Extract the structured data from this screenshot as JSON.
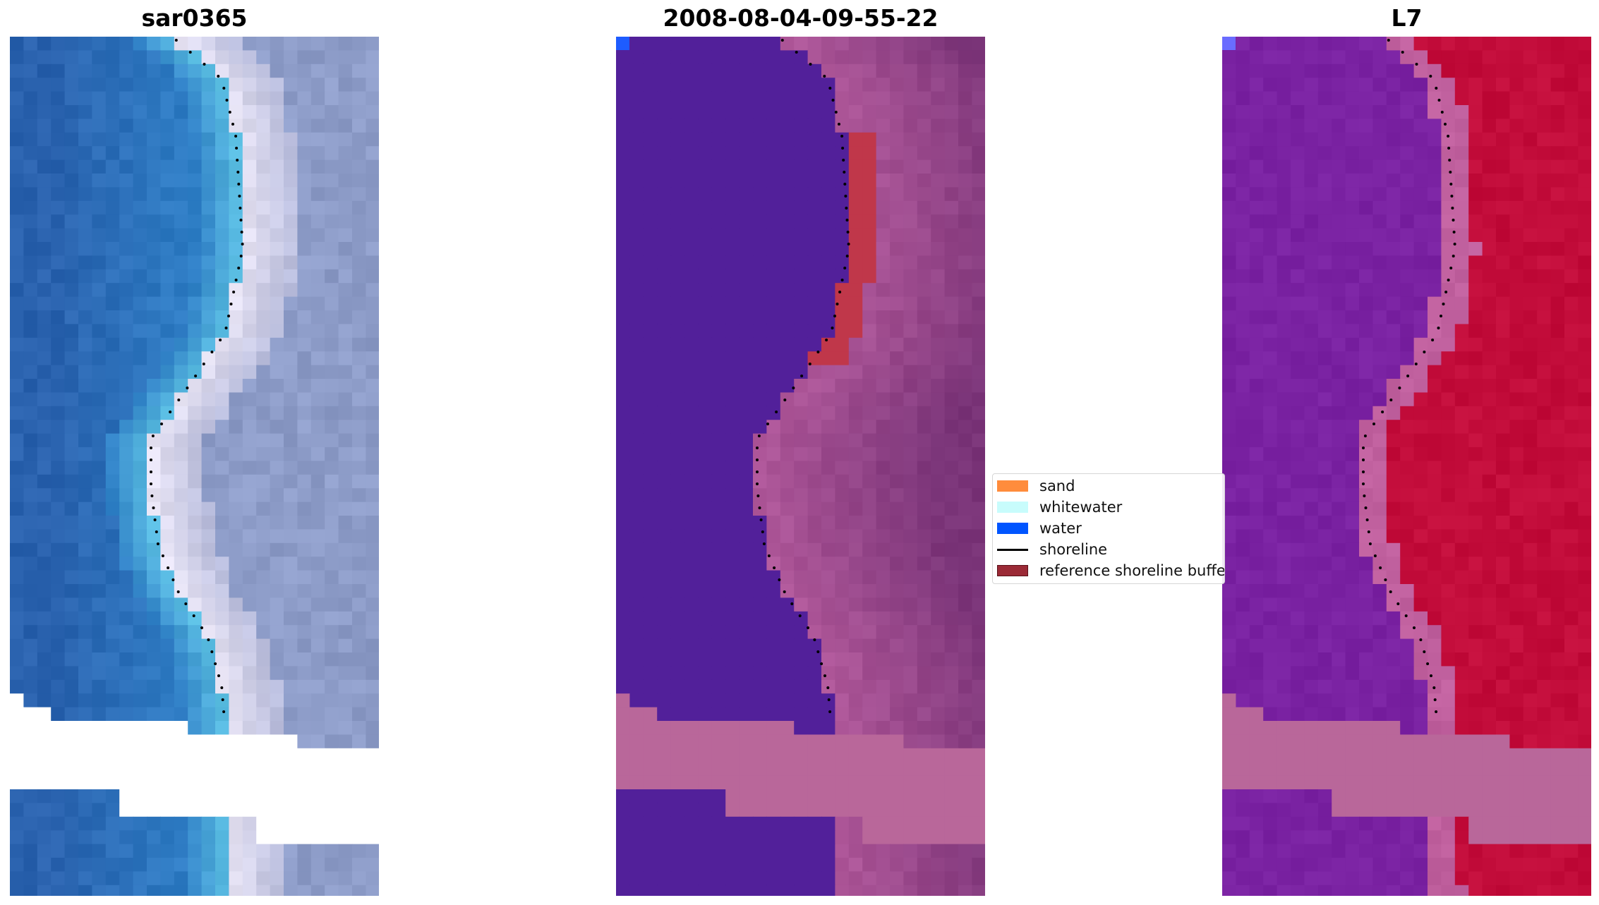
{
  "panels": [
    {
      "title": "sar0365",
      "kind": "rgb"
    },
    {
      "title": "2008-08-04-09-55-22",
      "kind": "classified"
    },
    {
      "title": "L7",
      "kind": "index"
    }
  ],
  "legend": {
    "items": [
      {
        "label": "sand",
        "color": "#ff8c3c",
        "type": "patch"
      },
      {
        "label": "whitewater",
        "color": "#c8fcfc",
        "type": "patch"
      },
      {
        "label": "water",
        "color": "#0055ff",
        "type": "patch"
      },
      {
        "label": "shoreline",
        "color": "#000000",
        "type": "line"
      },
      {
        "label": "reference shoreline buffer",
        "color": "#9b2a36",
        "type": "patch"
      }
    ]
  },
  "colors": {
    "rgb_water": "#2f7fc6",
    "rgb_land": "#8d9cc8",
    "rgb_surf": "#e8e4f4",
    "class_water": "#52209a",
    "class_land": "#a04a8a",
    "class_mask": "#b9679a",
    "class_buffer": "#c0374a",
    "index_water": "#7a22a2",
    "index_land": "#c20c3a",
    "index_mask": "#b9679a"
  }
}
